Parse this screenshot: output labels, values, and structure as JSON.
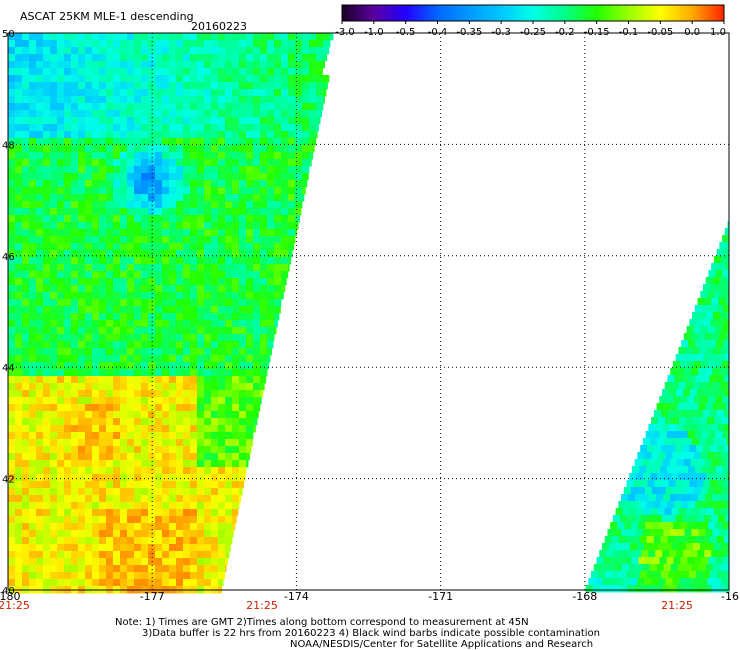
{
  "header": {
    "title": "ASCAT 25KM MLE-1 descending",
    "date": "20160223"
  },
  "colorbar": {
    "labels": [
      "-3.0",
      "-1.0",
      "-0.5",
      "-0.4",
      "-0.35",
      "-0.3",
      "-0.25",
      "-0.2",
      "-0.15",
      "-0.1",
      "-0.05",
      "0.0",
      "1.0"
    ],
    "colors": [
      "#1a0022",
      "#5a00a0",
      "#2200ff",
      "#0066ff",
      "#0099ff",
      "#00c8ff",
      "#00ffe6",
      "#00ff88",
      "#22ff00",
      "#99ff00",
      "#ffff00",
      "#ffaa00",
      "#ff2200"
    ]
  },
  "chart_data": {
    "type": "heatmap",
    "title": "ASCAT 25KM MLE-1 descending 20160223",
    "x_ticks": [
      "-180",
      "-177",
      "-174",
      "-171",
      "-168",
      "-16"
    ],
    "y_ticks": [
      "50",
      "48",
      "46",
      "44",
      "42",
      "40"
    ],
    "xlim": [
      -180,
      -165
    ],
    "ylim": [
      40,
      50
    ],
    "time_labels": [
      "21:25",
      "21:25",
      "21:25"
    ],
    "grid": true,
    "colorbar_range": [
      -3.0,
      1.0
    ],
    "swaths": [
      {
        "name": "",
        "region": "west",
        "dominant_values": "mostly -0.15 to -0.3 north of 44N, -0.05 to 0.0 south of 44N"
      },
      {
        "name": "",
        "region": "east",
        "dominant_values": "mostly -0.15 to -0.3, some -0.05 near south edge"
      }
    ]
  },
  "footer": {
    "line1": "Note: 1) Times are GMT 2)Times along bottom correspond to measurement at 45N",
    "line2": "3)Data buffer is 22 hrs from 20160223 4) Black wind barbs indicate possible contamination",
    "line3": "NOAA/NESDIS/Center for Satellite Applications and Research"
  }
}
